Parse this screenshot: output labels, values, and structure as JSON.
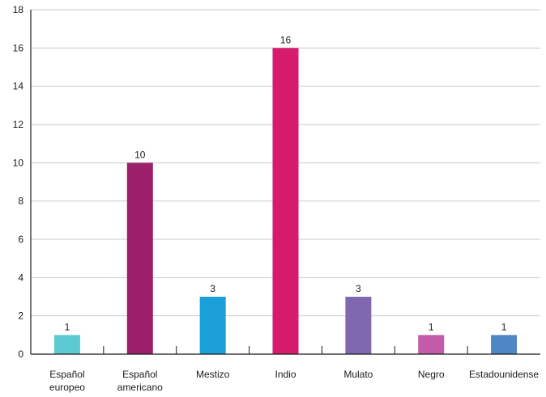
{
  "chart_data": {
    "type": "bar",
    "categories": [
      [
        "Español",
        "europeo"
      ],
      [
        "Español",
        "americano"
      ],
      [
        "Mestizo"
      ],
      [
        "Indio"
      ],
      [
        "Mulato"
      ],
      [
        "Negro"
      ],
      [
        "Estadounidense"
      ]
    ],
    "values": [
      1,
      10,
      3,
      16,
      3,
      1,
      1
    ],
    "colors": [
      "#5ccad0",
      "#9b1f6a",
      "#1a9fd9",
      "#d61a6c",
      "#8068b0",
      "#c25ca8",
      "#4f86c6"
    ],
    "data_labels": [
      "1",
      "10",
      "3",
      "16",
      "3",
      "1",
      "1"
    ],
    "ylim": [
      0,
      18
    ],
    "yticks": [
      "0",
      "2",
      "4",
      "6",
      "8",
      "10",
      "12",
      "14",
      "16",
      "18"
    ],
    "grid": true,
    "title": "",
    "xlabel": "",
    "ylabel": ""
  }
}
